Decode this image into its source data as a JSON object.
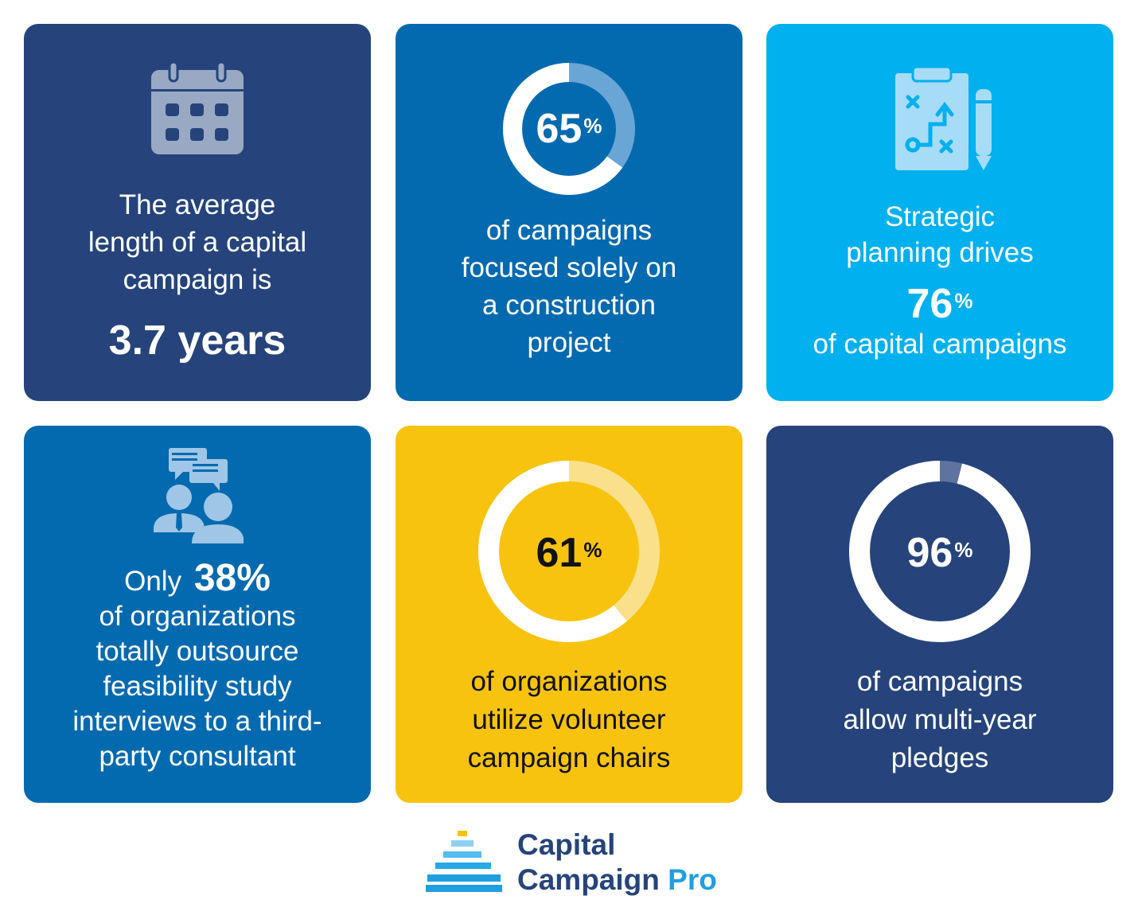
{
  "cards": {
    "c1": {
      "lines": [
        "The average",
        "length of a capital",
        "campaign is"
      ],
      "value": "3.7 years",
      "icon": "calendar-icon"
    },
    "c2": {
      "value": "65",
      "unit": "%",
      "percent": 65,
      "lines": [
        "of campaigns",
        "focused solely on",
        "a construction",
        "project"
      ]
    },
    "c3": {
      "lines_top": [
        "Strategic",
        "planning drives"
      ],
      "value": "76",
      "unit": "%",
      "line_bottom": "of capital campaigns",
      "icon": "clipboard-strategy-icon"
    },
    "c4": {
      "prefix": "Only",
      "value": "38%",
      "lines": [
        "of organizations",
        "totally outsource",
        "feasibility study",
        "interviews to a third-",
        "party consultant"
      ],
      "icon": "consultation-people-icon"
    },
    "c5": {
      "value": "61",
      "unit": "%",
      "percent": 61,
      "lines": [
        "of organizations",
        "utilize volunteer",
        "campaign chairs"
      ]
    },
    "c6": {
      "value": "96",
      "unit": "%",
      "percent": 96,
      "lines": [
        "of campaigns",
        "allow multi-year",
        "pledges"
      ]
    }
  },
  "logo": {
    "line1": "Capital",
    "line2_main": "Campaign",
    "line2_accent": "Pro",
    "icon": "pyramid-stairs-icon"
  },
  "colors": {
    "navy": "#26447b",
    "blue": "#046ab0",
    "sky": "#00b0ef",
    "yellow": "#f7c30f"
  }
}
